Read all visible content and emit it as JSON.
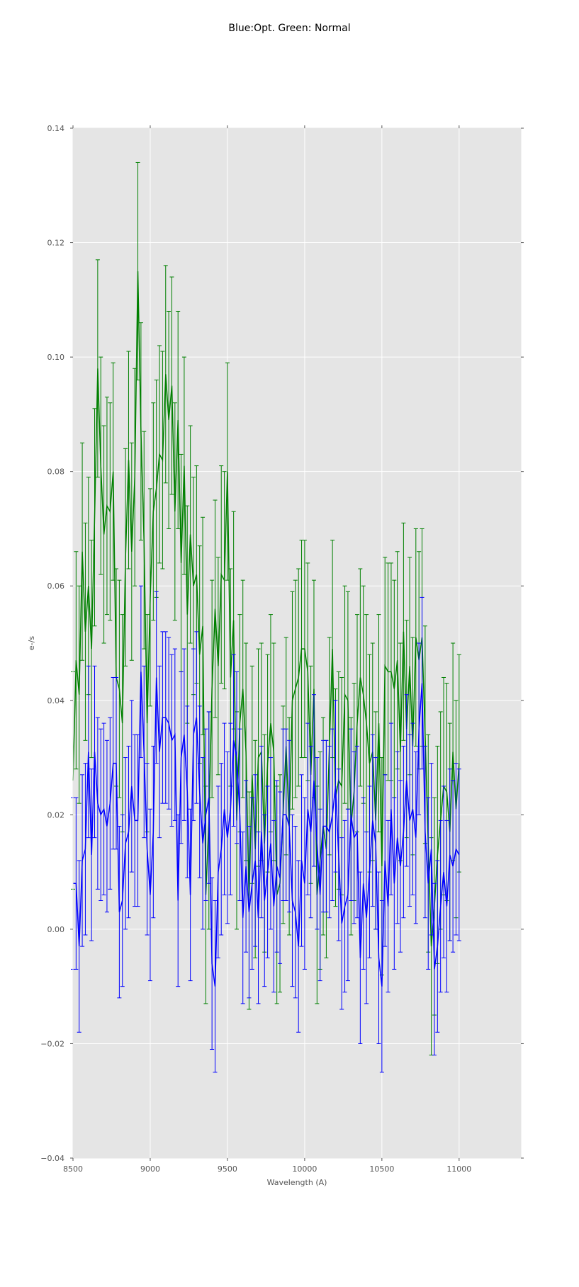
{
  "chart_data": {
    "type": "line",
    "title": "Blue:Opt. Green: Normal",
    "xlabel": "Wavelength (A)",
    "ylabel": "e-/s",
    "xlim": [
      8500,
      11400
    ],
    "ylim": [
      -0.04,
      0.14
    ],
    "xticks": [
      8500,
      9000,
      9500,
      10000,
      10500,
      11000
    ],
    "yticks": [
      -0.04,
      -0.02,
      0.0,
      0.02,
      0.04,
      0.06,
      0.08,
      0.1,
      0.12,
      0.14
    ],
    "xtick_labels": [
      "8500",
      "9000",
      "9500",
      "10000",
      "10500",
      "11000"
    ],
    "ytick_labels": [
      "−0.04",
      "−0.02",
      "0.00",
      "0.02",
      "0.04",
      "0.06",
      "0.08",
      "0.10",
      "0.12",
      "0.14"
    ],
    "grid": true,
    "background": "#e5e5e5",
    "x_start": 8500,
    "x_step": 20,
    "series": [
      {
        "color": "#008000",
        "error": 0.019,
        "values": [
          0.026,
          0.047,
          0.041,
          0.066,
          0.052,
          0.06,
          0.049,
          0.072,
          0.098,
          0.081,
          0.069,
          0.074,
          0.073,
          0.08,
          0.044,
          0.042,
          0.036,
          0.065,
          0.082,
          0.066,
          0.079,
          0.115,
          0.087,
          0.068,
          0.036,
          0.058,
          0.073,
          0.077,
          0.083,
          0.082,
          0.097,
          0.089,
          0.095,
          0.073,
          0.089,
          0.064,
          0.081,
          0.055,
          0.069,
          0.06,
          0.062,
          0.048,
          0.053,
          0.006,
          0.019,
          0.042,
          0.056,
          0.046,
          0.062,
          0.061,
          0.08,
          0.044,
          0.054,
          0.019,
          0.036,
          0.042,
          0.031,
          0.005,
          0.027,
          0.014,
          0.03,
          0.031,
          0.015,
          0.029,
          0.036,
          0.031,
          0.006,
          0.008,
          0.02,
          0.032,
          0.018,
          0.04,
          0.042,
          0.044,
          0.049,
          0.049,
          0.045,
          0.027,
          0.042,
          0.006,
          0.012,
          0.018,
          0.014,
          0.032,
          0.049,
          0.023,
          0.026,
          0.025,
          0.041,
          0.04,
          0.018,
          0.024,
          0.036,
          0.044,
          0.041,
          0.036,
          0.029,
          0.031,
          0.019,
          0.036,
          0.011,
          0.046,
          0.045,
          0.045,
          0.042,
          0.047,
          0.031,
          0.052,
          0.035,
          0.046,
          0.032,
          0.051,
          0.047,
          0.051,
          0.034,
          0.015,
          -0.003,
          0.004,
          0.013,
          0.019,
          0.025,
          0.024,
          0.017,
          0.031,
          0.021,
          0.029
        ]
      },
      {
        "color": "#0000ff",
        "error": 0.015,
        "values": [
          0.008,
          0.008,
          -0.003,
          0.012,
          0.014,
          0.031,
          0.013,
          0.031,
          0.022,
          0.02,
          0.021,
          0.018,
          0.022,
          0.029,
          0.029,
          0.003,
          0.005,
          0.015,
          0.017,
          0.025,
          0.019,
          0.019,
          0.045,
          0.031,
          0.014,
          0.006,
          0.017,
          0.044,
          0.031,
          0.037,
          0.037,
          0.036,
          0.033,
          0.034,
          0.005,
          0.03,
          0.034,
          0.024,
          0.006,
          0.034,
          0.037,
          0.024,
          0.015,
          0.02,
          0.023,
          -0.006,
          -0.01,
          0.01,
          0.014,
          0.021,
          0.016,
          0.021,
          0.033,
          0.03,
          0.02,
          0.002,
          0.011,
          0.003,
          0.008,
          0.012,
          0.002,
          0.017,
          0.005,
          0.01,
          0.015,
          0.004,
          0.011,
          0.009,
          0.02,
          0.02,
          0.018,
          0.005,
          0.003,
          -0.003,
          0.012,
          0.008,
          0.021,
          0.017,
          0.026,
          0.015,
          0.006,
          0.018,
          0.018,
          0.017,
          0.02,
          0.025,
          0.013,
          0.001,
          0.004,
          0.006,
          0.02,
          0.016,
          0.017,
          -0.005,
          0.008,
          0.002,
          0.01,
          0.019,
          0.015,
          -0.005,
          -0.01,
          0.012,
          0.004,
          0.021,
          0.008,
          0.016,
          0.011,
          0.017,
          0.026,
          0.019,
          0.021,
          0.016,
          0.035,
          0.043,
          0.017,
          0.008,
          0.014,
          -0.007,
          -0.003,
          0.004,
          0.01,
          0.004,
          0.013,
          0.011,
          0.014,
          0.013
        ]
      }
    ]
  }
}
